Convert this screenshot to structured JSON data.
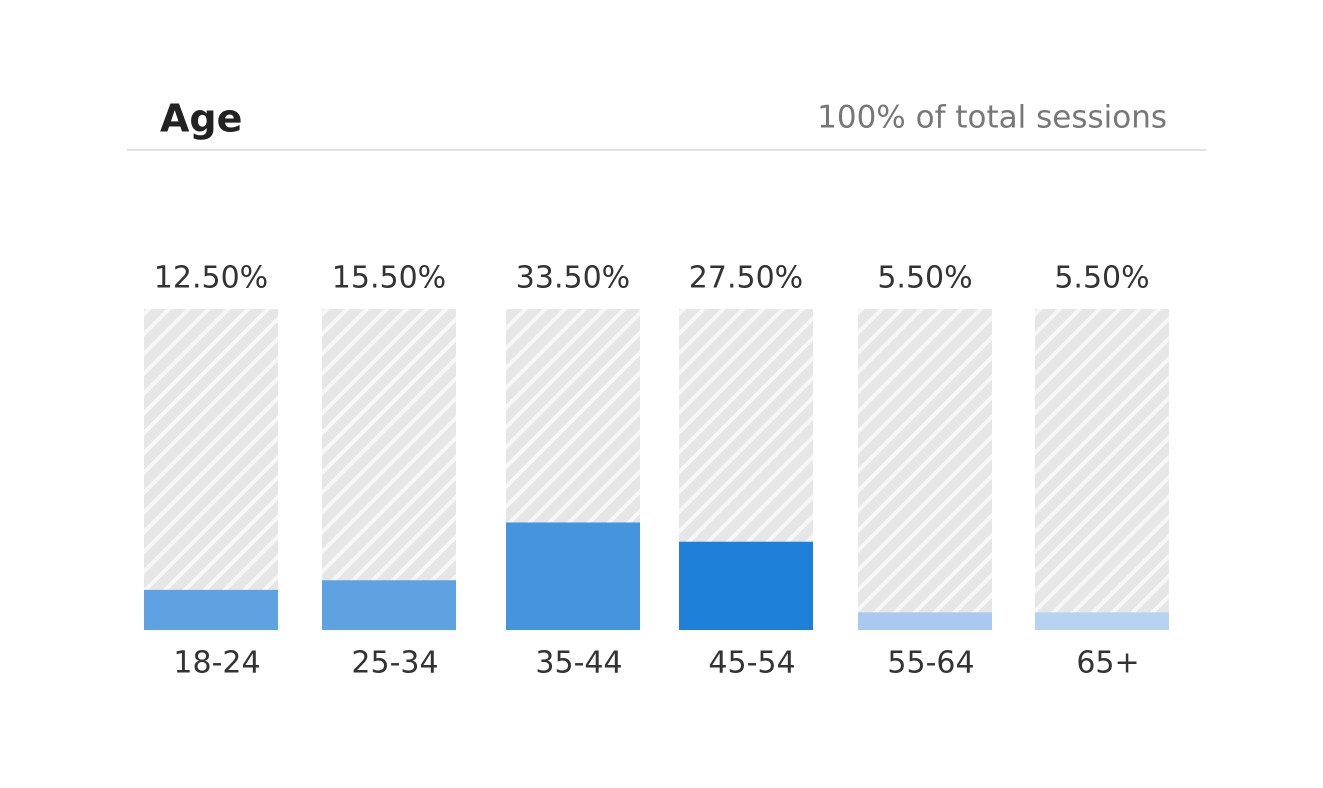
{
  "chart_data": {
    "type": "bar",
    "title": "Age",
    "subtitle": "100% of total sessions",
    "categories": [
      "18-24",
      "25-34",
      "35-44",
      "45-54",
      "55-64",
      "65+"
    ],
    "values": [
      12.5,
      15.5,
      33.5,
      27.5,
      5.5,
      5.5
    ],
    "value_labels": [
      "12.50%",
      "15.50%",
      "33.50%",
      "27.50%",
      "5.50%",
      "5.50%"
    ],
    "colors": [
      "#5ea2e2",
      "#5ea2e2",
      "#4594de",
      "#1e80d9",
      "#a9caee",
      "#b7d3f1"
    ],
    "ylim": [
      0,
      100
    ]
  }
}
